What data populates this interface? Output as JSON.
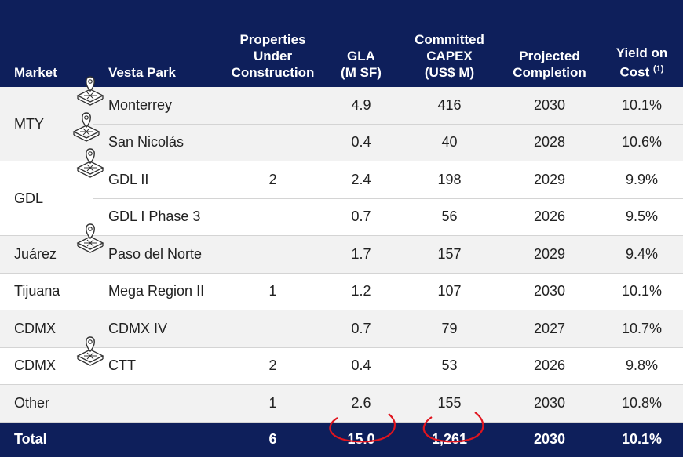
{
  "table": {
    "headers": [
      [
        "Market"
      ],
      [
        "Vesta Park"
      ],
      [
        "Properties",
        "Under",
        "Construction"
      ],
      [
        "GLA",
        "(M SF)"
      ],
      [
        "Committed",
        "CAPEX",
        "(US$ M)"
      ],
      [
        "Projected",
        "Completion"
      ],
      [
        "Yield on",
        "Cost"
      ]
    ],
    "yield_note": "(1)",
    "groups": [
      {
        "market": "MTY",
        "rows": [
          [
            "Monterrey",
            null,
            "4.9",
            "416",
            "2030",
            "10.1%"
          ],
          [
            "San Nicolás",
            null,
            "0.4",
            "40",
            "2028",
            "10.6%"
          ]
        ]
      },
      {
        "market": "GDL",
        "rows": [
          [
            "GDL II",
            "2",
            "2.4",
            "198",
            "2029",
            "9.9%"
          ],
          [
            "GDL I Phase 3",
            null,
            "0.7",
            "56",
            "2026",
            "9.5%"
          ]
        ]
      },
      {
        "market": "Juárez",
        "rows": [
          [
            "Paso del Norte",
            null,
            "1.7",
            "157",
            "2029",
            "9.4%"
          ]
        ]
      },
      {
        "market": "Tijuana",
        "rows": [
          [
            "Mega Region II",
            "1",
            "1.2",
            "107",
            "2030",
            "10.1%"
          ]
        ]
      },
      {
        "market": "CDMX",
        "rows": [
          [
            "CDMX IV",
            null,
            "0.7",
            "79",
            "2027",
            "10.7%"
          ]
        ]
      },
      {
        "market": "CDMX",
        "rows": [
          [
            "CTT",
            "2",
            "0.4",
            "53",
            "2026",
            "9.8%"
          ]
        ]
      },
      {
        "market": "Other",
        "rows": [
          [
            null,
            "1",
            "2.6",
            "155",
            "2030",
            "10.8%"
          ]
        ]
      }
    ],
    "total": {
      "label": "Total",
      "values": [
        "6",
        "15.0",
        "1,261",
        "2030",
        "10.1%"
      ]
    }
  }
}
